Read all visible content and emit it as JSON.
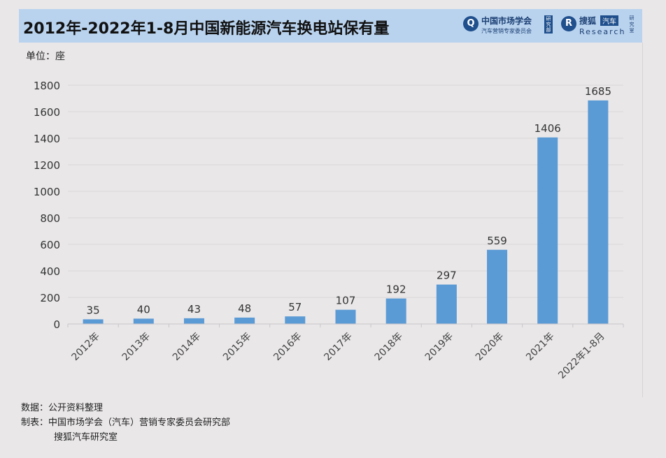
{
  "header": {
    "title": "2012年-2022年1-8月中国新能源汽车换电站保有量",
    "logo1_main": "中国市场学会",
    "logo1_sub": "汽车营销专家委员会",
    "logo1_tag": "研究部",
    "logo2_brand": "搜狐",
    "logo2_tag": "汽车",
    "logo2_sub": "Research",
    "logo2_side": "研究室"
  },
  "unit_label": "单位：座",
  "chart_data": {
    "type": "bar",
    "categories": [
      "2012年",
      "2013年",
      "2014年",
      "2015年",
      "2016年",
      "2017年",
      "2018年",
      "2019年",
      "2020年",
      "2021年",
      "2022年1-8月"
    ],
    "values": [
      35,
      40,
      43,
      48,
      57,
      107,
      192,
      297,
      559,
      1406,
      1685
    ],
    "ylim": [
      0,
      1800
    ],
    "yticks": [
      0,
      200,
      400,
      600,
      800,
      1000,
      1200,
      1400,
      1600,
      1800
    ],
    "bar_color": "#5b9bd5",
    "grid": true,
    "legend": "none"
  },
  "footer": {
    "source": "数据：公开资料整理",
    "maker_line1": "制表：中国市场学会（汽车）营销专家委员会研究部",
    "maker_line2": "搜狐汽车研究室"
  }
}
